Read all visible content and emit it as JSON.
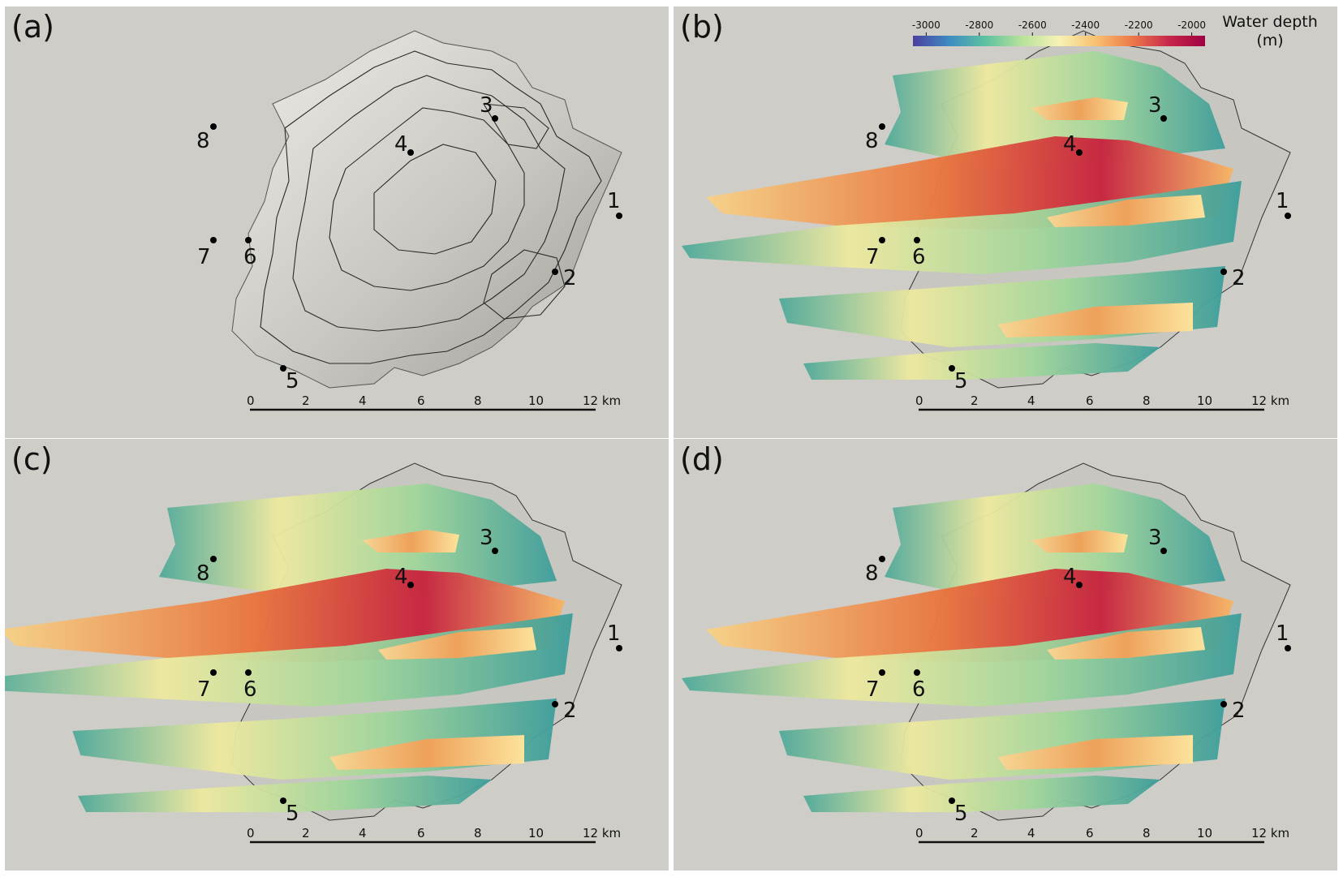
{
  "panels": [
    {
      "id": "a",
      "label": "(a)"
    },
    {
      "id": "b",
      "label": "(b)"
    },
    {
      "id": "c",
      "label": "(c)"
    },
    {
      "id": "d",
      "label": "(d)"
    }
  ],
  "markers": [
    "1",
    "2",
    "3",
    "4",
    "5",
    "6",
    "7",
    "8"
  ],
  "scale_bar": {
    "ticks": [
      "0",
      "2",
      "4",
      "6",
      "8",
      "10",
      "12 km"
    ]
  },
  "colorbar": {
    "title_line1": "Water depth",
    "title_line2": "(m)",
    "ticks": [
      "-3000",
      "-2800",
      "-2600",
      "-2400",
      "-2200",
      "-2000"
    ],
    "range": [
      -3050,
      -1950
    ],
    "colors": [
      "#4b3fa0",
      "#3f8cc2",
      "#5ec2a0",
      "#b8e29a",
      "#f6f3b4",
      "#f8c171",
      "#ec7a4a",
      "#c8284a",
      "#9e0142"
    ]
  },
  "colors": {
    "seafloor": "#cfcdc7",
    "terrain_light": "#e8e6e1",
    "terrain_dark": "#8c8a85",
    "contour": "#2a2a2a"
  }
}
